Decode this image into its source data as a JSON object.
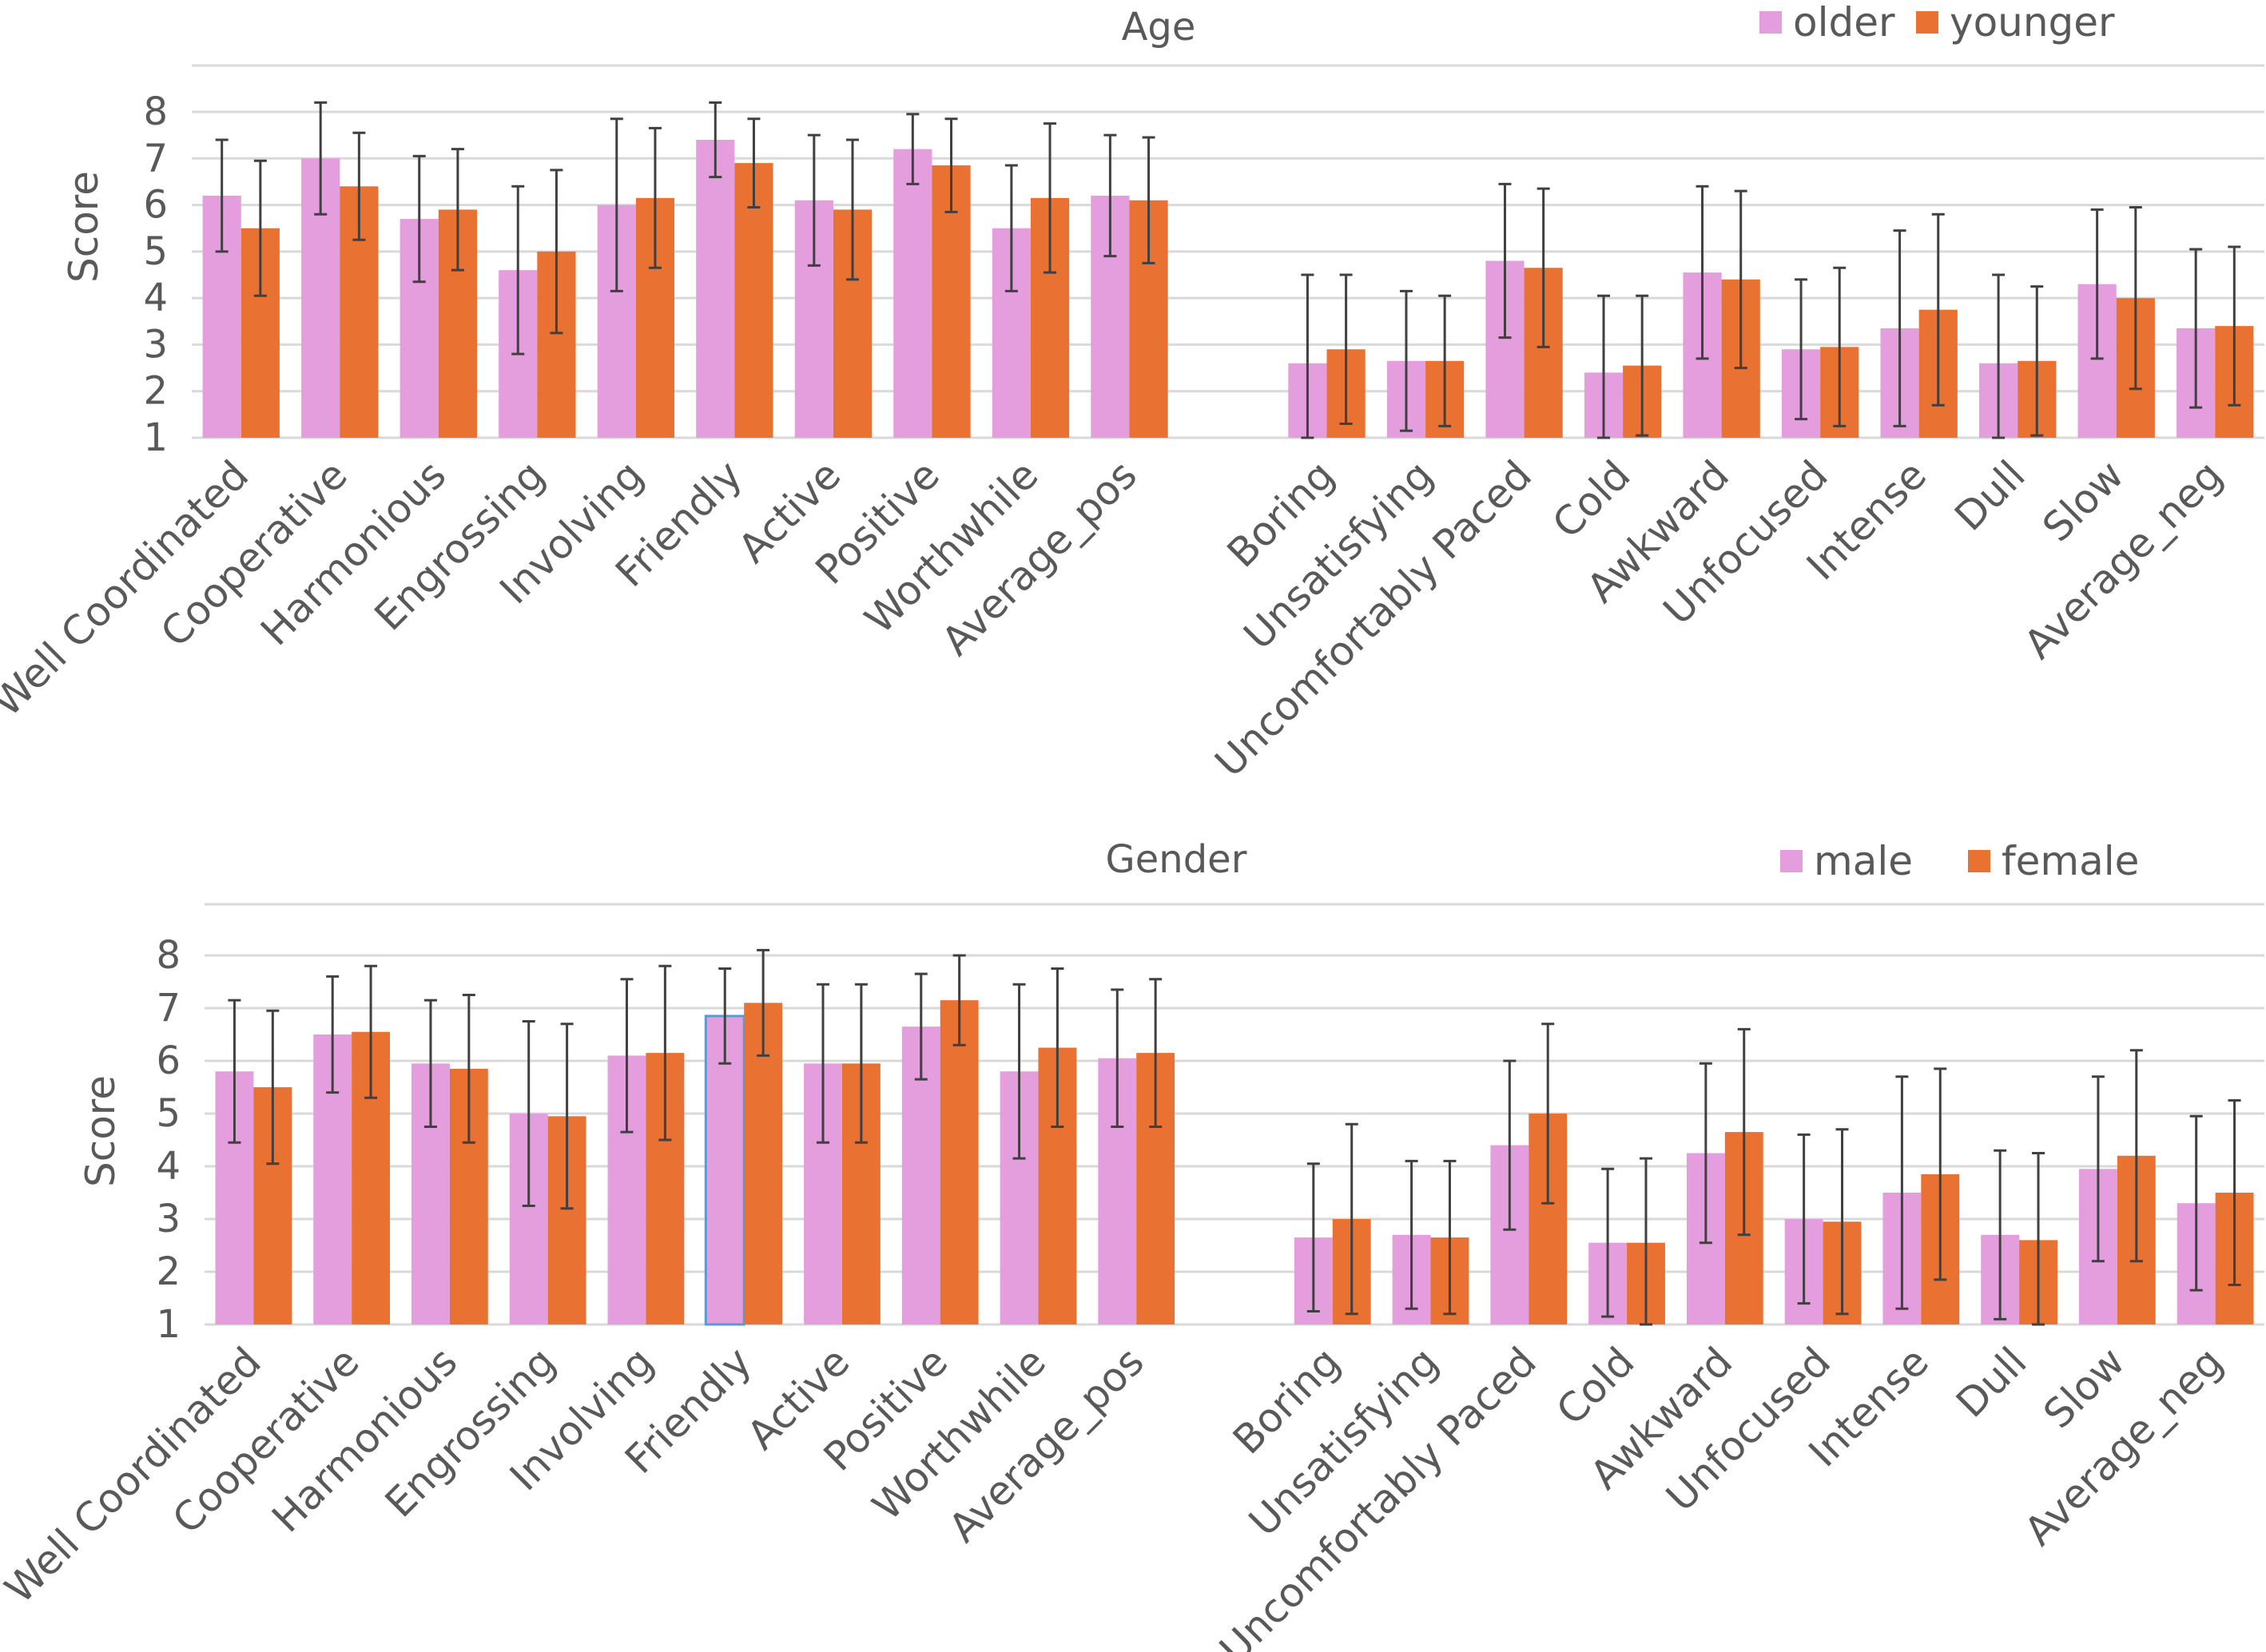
{
  "colors": {
    "series1": "#e49edd",
    "series2": "#e97132",
    "highlight": "#5b9bd5"
  },
  "chart_data": [
    {
      "type": "bar",
      "title": "Age",
      "ylabel": "Score",
      "xlabel": "",
      "ylim": [
        1,
        8
      ],
      "yticks": [
        1,
        2,
        3,
        4,
        5,
        6,
        7,
        8
      ],
      "grid": true,
      "legend_position": "top-right",
      "categories": [
        "Well Coordinated",
        "Cooperative",
        "Harmonious",
        "Engrossing",
        "Involving",
        "Friendly",
        "Active",
        "Positive",
        "Worthwhile",
        "Average_pos",
        "",
        "Boring",
        "Unsatisfying",
        "Uncomfortably Paced",
        "Cold",
        "Awkward",
        "Unfocused",
        "Intense",
        "Dull",
        "Slow",
        "Average_neg"
      ],
      "series": [
        {
          "name": "older",
          "values": [
            6.2,
            7.0,
            5.7,
            4.6,
            6.0,
            7.4,
            6.1,
            7.2,
            5.5,
            6.2,
            null,
            2.6,
            2.65,
            4.8,
            2.4,
            4.55,
            2.9,
            3.35,
            2.6,
            4.3,
            3.35
          ],
          "errors": [
            1.2,
            1.2,
            1.35,
            1.8,
            1.85,
            0.8,
            1.4,
            0.75,
            1.35,
            1.3,
            null,
            1.9,
            1.5,
            1.65,
            1.65,
            1.85,
            1.5,
            2.1,
            1.9,
            1.6,
            1.7
          ]
        },
        {
          "name": "younger",
          "values": [
            5.5,
            6.4,
            5.9,
            5.0,
            6.15,
            6.9,
            5.9,
            6.85,
            6.15,
            6.1,
            null,
            2.9,
            2.65,
            4.65,
            2.55,
            4.4,
            2.95,
            3.75,
            2.65,
            4.0,
            3.4
          ],
          "errors": [
            1.45,
            1.15,
            1.3,
            1.75,
            1.5,
            0.95,
            1.5,
            1.0,
            1.6,
            1.35,
            null,
            1.6,
            1.4,
            1.7,
            1.5,
            1.9,
            1.7,
            2.05,
            1.6,
            1.95,
            1.7
          ]
        }
      ]
    },
    {
      "type": "bar",
      "title": "Gender",
      "ylabel": "Score",
      "xlabel": "",
      "ylim": [
        1,
        8
      ],
      "yticks": [
        1,
        2,
        3,
        4,
        5,
        6,
        7,
        8
      ],
      "grid": true,
      "legend_position": "top-right",
      "highlight_point": {
        "series": 0,
        "category": "Friendly"
      },
      "categories": [
        "Well Coordinated",
        "Cooperative",
        "Harmonious",
        "Engrossing",
        "Involving",
        "Friendly",
        "Active",
        "Positive",
        "Worthwhile",
        "Average_pos",
        "",
        "Boring",
        "Unsatisfying",
        "Uncomfortably Paced",
        "Cold",
        "Awkward",
        "Unfocused",
        "Intense",
        "Dull",
        "Slow",
        "Average_neg"
      ],
      "series": [
        {
          "name": "male",
          "values": [
            5.8,
            6.5,
            5.95,
            5.0,
            6.1,
            6.85,
            5.95,
            6.65,
            5.8,
            6.05,
            null,
            2.65,
            2.7,
            4.4,
            2.55,
            4.25,
            3.0,
            3.5,
            2.7,
            3.95,
            3.3
          ],
          "errors": [
            1.35,
            1.1,
            1.2,
            1.75,
            1.45,
            0.9,
            1.5,
            1.0,
            1.65,
            1.3,
            null,
            1.4,
            1.4,
            1.6,
            1.4,
            1.7,
            1.6,
            2.2,
            1.6,
            1.75,
            1.65
          ]
        },
        {
          "name": "female",
          "values": [
            5.5,
            6.55,
            5.85,
            4.95,
            6.15,
            7.1,
            5.95,
            7.15,
            6.25,
            6.15,
            null,
            3.0,
            2.65,
            5.0,
            2.55,
            4.65,
            2.95,
            3.85,
            2.6,
            4.2,
            3.5
          ],
          "errors": [
            1.45,
            1.25,
            1.4,
            1.75,
            1.65,
            1.0,
            1.5,
            0.85,
            1.5,
            1.4,
            null,
            1.8,
            1.45,
            1.7,
            1.6,
            1.95,
            1.75,
            2.0,
            1.65,
            2.0,
            1.75
          ]
        }
      ]
    }
  ]
}
